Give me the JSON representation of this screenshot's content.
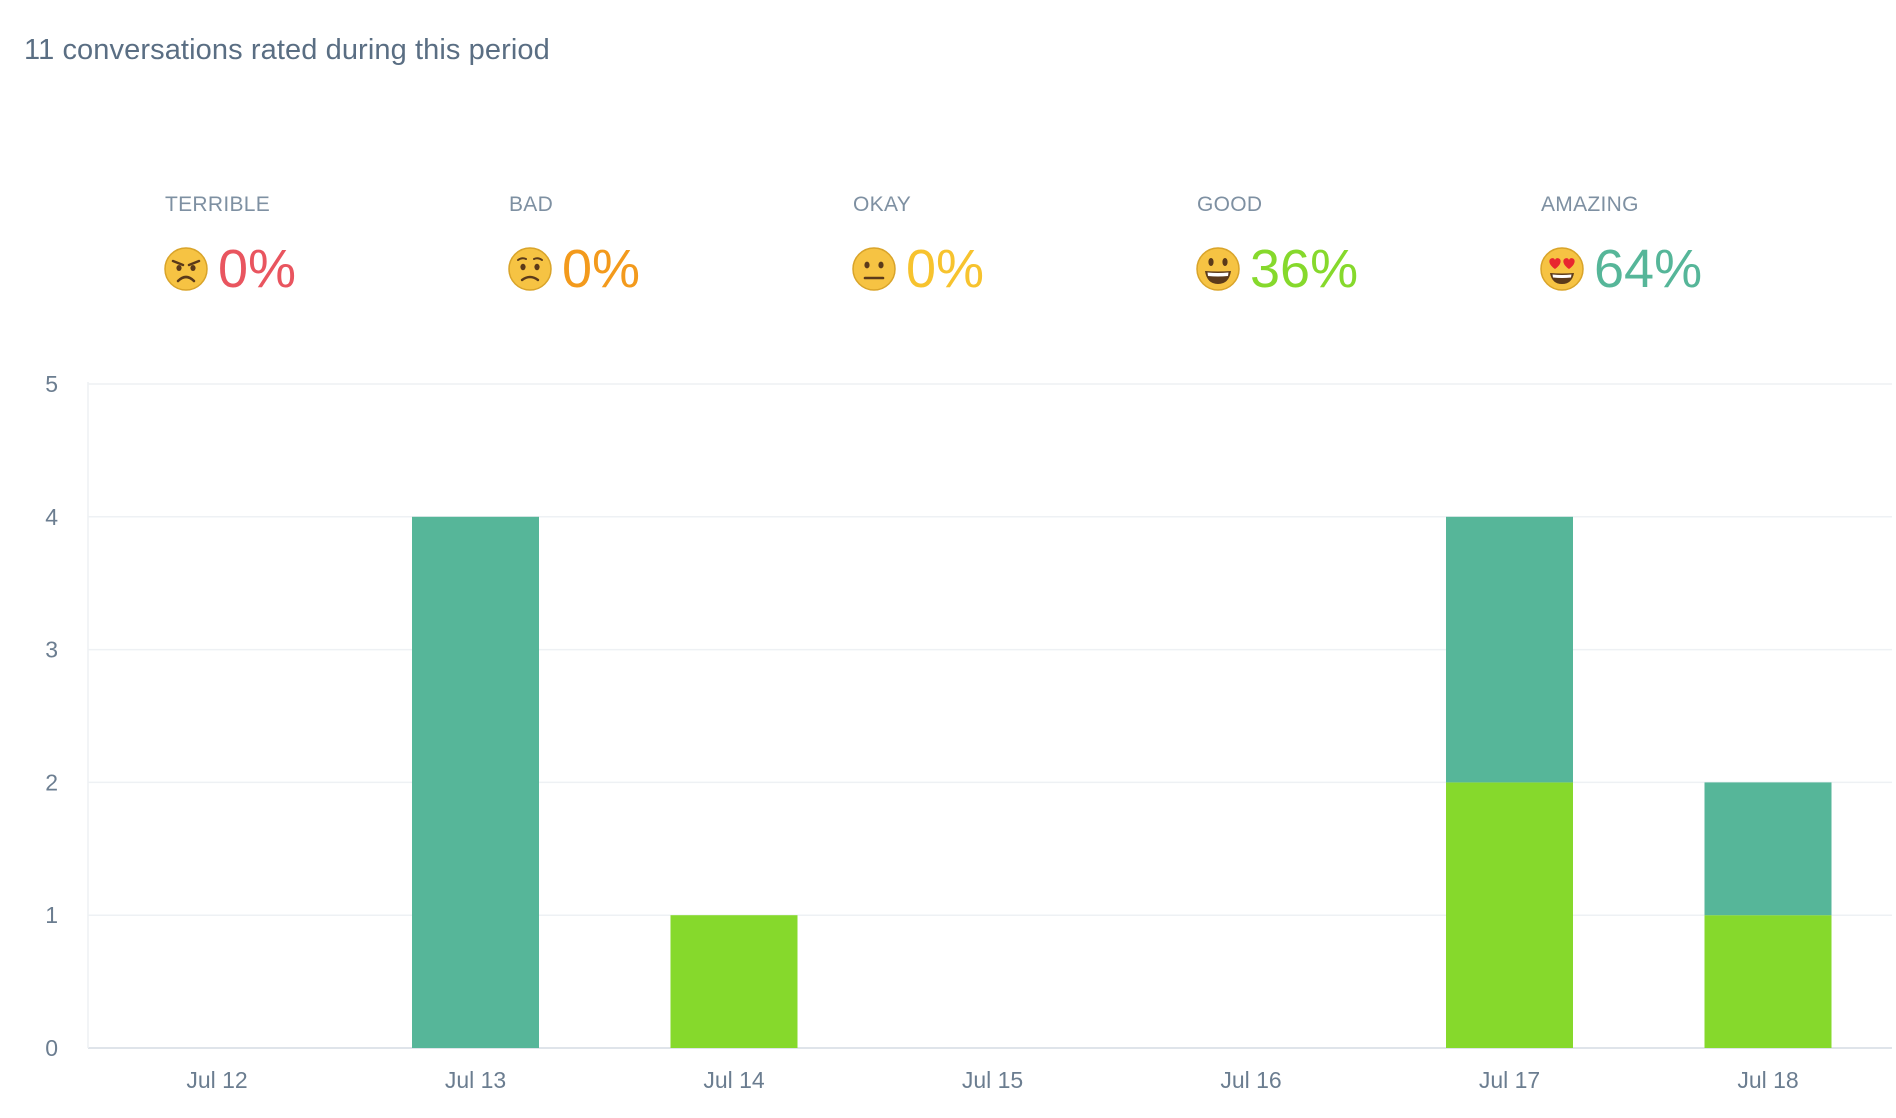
{
  "summary": "11 conversations rated during this period",
  "ratings": [
    {
      "label": "TERRIBLE",
      "value": "0%",
      "color": "#e9555f",
      "icon": "angry-face-icon"
    },
    {
      "label": "BAD",
      "value": "0%",
      "color": "#f39a1c",
      "icon": "frowning-face-icon"
    },
    {
      "label": "OKAY",
      "value": "0%",
      "color": "#f7c32e",
      "icon": "neutral-face-icon"
    },
    {
      "label": "GOOD",
      "value": "36%",
      "color": "#86d92c",
      "icon": "smiling-face-icon"
    },
    {
      "label": "AMAZING",
      "value": "64%",
      "color": "#56b699",
      "icon": "heart-eyes-face-icon"
    }
  ],
  "chart_data": {
    "type": "bar",
    "stacked": true,
    "categories": [
      "Jul 12",
      "Jul 13",
      "Jul 14",
      "Jul 15",
      "Jul 16",
      "Jul 17",
      "Jul 18"
    ],
    "series": [
      {
        "color": "#86d92c",
        "values": [
          0,
          0,
          1,
          0,
          0,
          2,
          1
        ]
      },
      {
        "color": "#56b699",
        "values": [
          0,
          4,
          0,
          0,
          0,
          2,
          1
        ]
      }
    ],
    "yticks": [
      0,
      1,
      2,
      3,
      4,
      5
    ],
    "ylim": [
      0,
      5
    ],
    "grid": true,
    "legend": "none"
  }
}
